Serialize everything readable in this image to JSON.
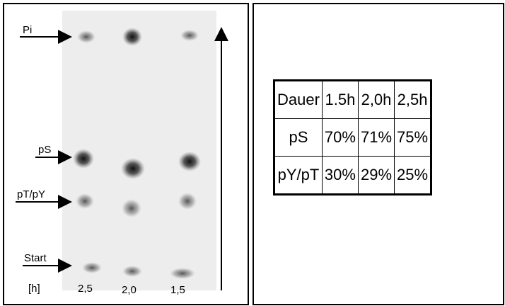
{
  "figure": {
    "lane_labels": [
      "Pi",
      "pS",
      "pT/pY",
      "Start"
    ],
    "time_unit": "[h]",
    "time_labels": [
      "2,5",
      "2,0",
      "1,5"
    ],
    "table": {
      "rows": [
        [
          "Dauer",
          "1.5h",
          "2,0h",
          "2,5h"
        ],
        [
          "pS",
          "70%",
          "71%",
          "75%"
        ],
        [
          "pY/pT",
          "30%",
          "29%",
          "25%"
        ]
      ]
    }
  }
}
